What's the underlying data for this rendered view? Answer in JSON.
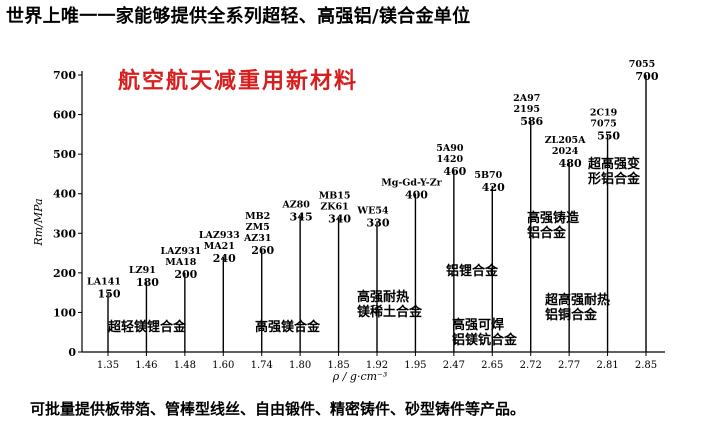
{
  "headline": "世界上唯一一家能够提供全系列超轻、高强铝/镁合金单位",
  "footer": "可批量提供板带箔、管棒型线丝、自由锻件、精密铸件、砂型铸件等产品。",
  "colors": {
    "subtitle": "#d62020",
    "axis": "#000000"
  },
  "chart_data": {
    "type": "bar",
    "subtitle": "航空航天减重用新材料",
    "xlabel": "ρ / g·cm⁻³",
    "ylabel": "Rm/MPa",
    "ylim": [
      0,
      700
    ],
    "yticks": [
      0,
      100,
      200,
      300,
      400,
      500,
      600,
      700
    ],
    "categories": [
      "1.35",
      "1.46",
      "1.48",
      "1.60",
      "1.74",
      "1.80",
      "1.85",
      "1.92",
      "1.95",
      "2.47",
      "2.65",
      "2.72",
      "2.77",
      "2.81",
      "2.85"
    ],
    "values": [
      150,
      180,
      200,
      240,
      260,
      345,
      340,
      330,
      400,
      460,
      420,
      586,
      480,
      550,
      700
    ],
    "value_labels": [
      "150",
      "180",
      "200",
      "240",
      "260",
      "345",
      "340",
      "330",
      "400",
      "460",
      "420",
      "586",
      "480",
      "550",
      "700"
    ],
    "alloys": [
      [
        "LA141"
      ],
      [
        "LZ91"
      ],
      [
        "LAZ931",
        "MA18"
      ],
      [
        "LAZ933",
        "MA21"
      ],
      [
        "MB2",
        "ZM5",
        "AZ31"
      ],
      [
        "AZ80"
      ],
      [
        "MB15",
        "ZK61"
      ],
      [
        "WE54"
      ],
      [
        "Mg-Gd-Y-Zr"
      ],
      [
        "5A90",
        "1420"
      ],
      [
        "5B70"
      ],
      [
        "2A97",
        "2195"
      ],
      [
        "ZL205A",
        "2024"
      ],
      [
        "2C19",
        "7075"
      ],
      [
        "7055"
      ]
    ],
    "groups": [
      {
        "lines": [
          "超轻镁锂合金"
        ]
      },
      {
        "lines": [
          "高强镁合金"
        ]
      },
      {
        "lines": [
          "高强耐热",
          "镁稀土合金"
        ]
      },
      {
        "lines": [
          "铝锂合金"
        ]
      },
      {
        "lines": [
          "高强可焊",
          "铝镁钪合金"
        ]
      },
      {
        "lines": [
          "高强铸造",
          "铝合金"
        ]
      },
      {
        "lines": [
          "超高强耐热",
          "铝铜合金"
        ]
      },
      {
        "lines": [
          "超高强变",
          "形铝合金"
        ]
      }
    ]
  }
}
